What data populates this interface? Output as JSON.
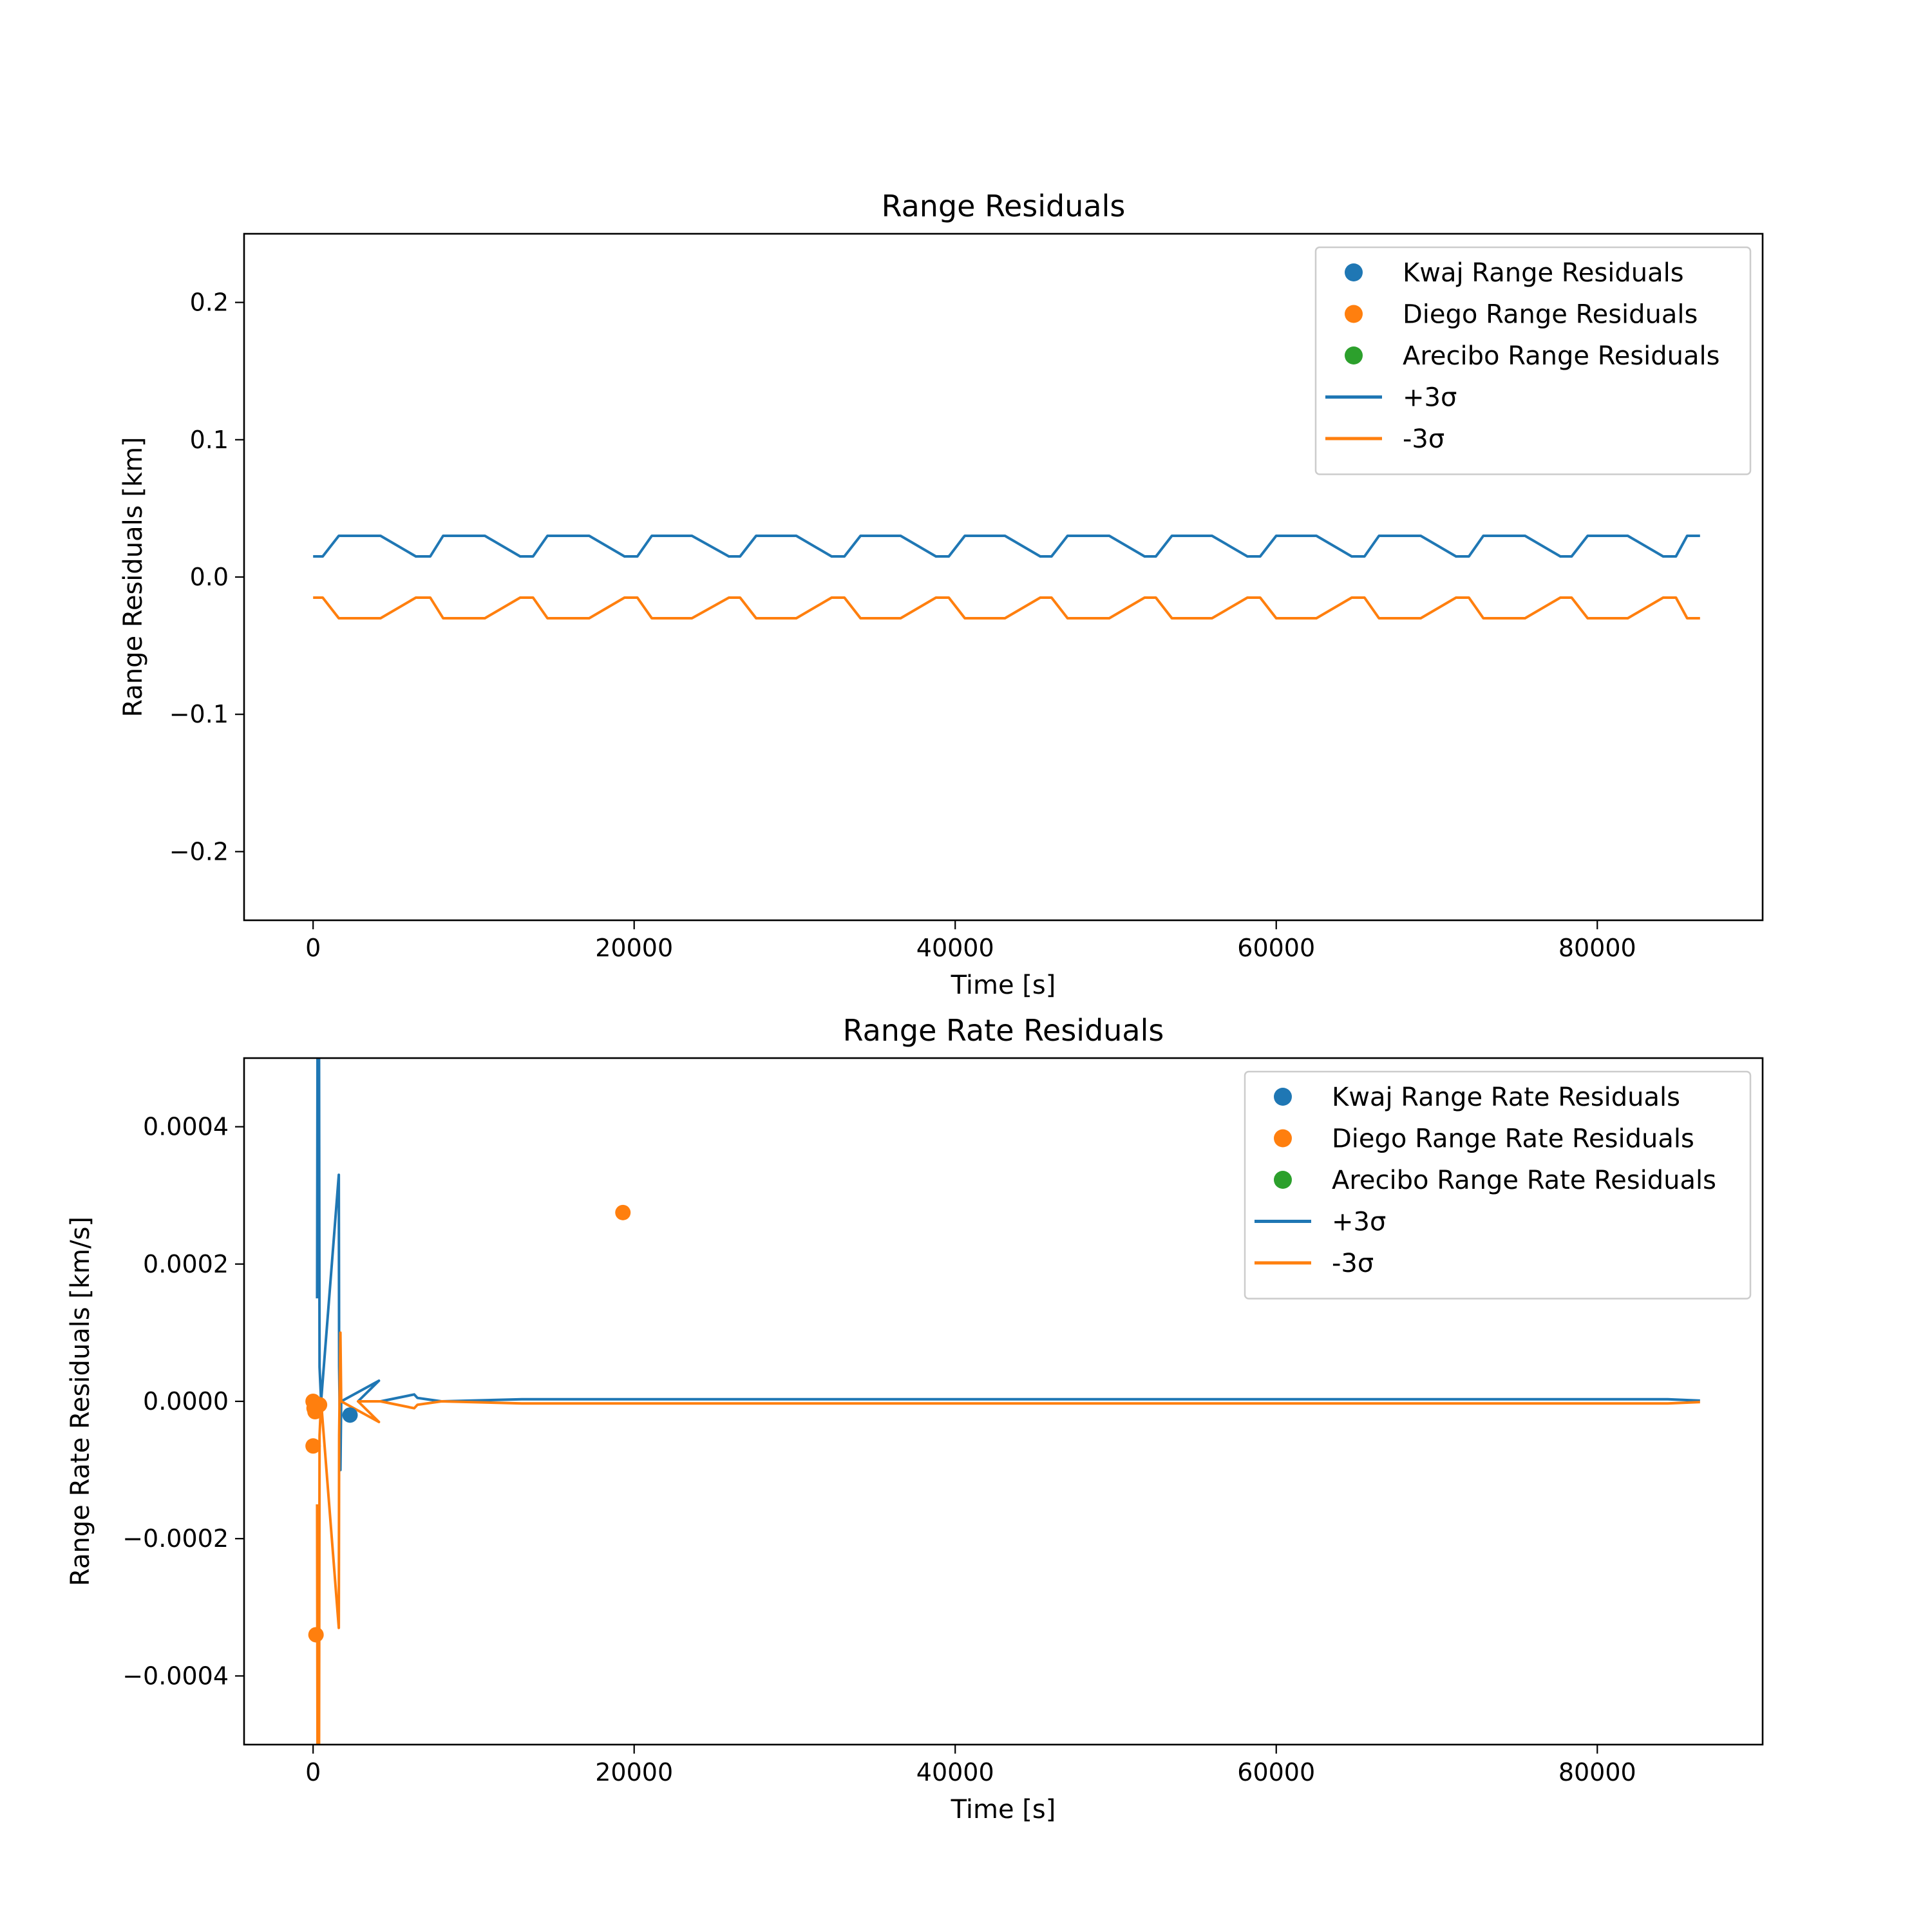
{
  "colors": {
    "blue": "#1f77b4",
    "orange": "#ff7f0e",
    "green": "#2ca02c"
  },
  "chart_data": [
    {
      "type": "line",
      "title": "Range Residuals",
      "xlabel": "Time [s]",
      "ylabel": "Range Residuals [km]",
      "xlim": [
        -4300,
        90300
      ],
      "ylim": [
        -0.25,
        0.25
      ],
      "xticks": [
        0,
        20000,
        40000,
        60000,
        80000
      ],
      "xtick_labels": [
        "0",
        "20000",
        "40000",
        "60000",
        "80000"
      ],
      "yticks": [
        0.2,
        0.1,
        0.0,
        -0.1,
        -0.2
      ],
      "ytick_labels": [
        "0.2",
        "0.1",
        "0.0",
        "−0.1",
        "−0.2"
      ],
      "legend_position": "top-right",
      "legend": [
        "Kwaj Range Residuals",
        "Diego Range Residuals",
        "Arecibo Range Residuals",
        "+3σ",
        "-3σ"
      ],
      "scatter": [
        {
          "name": "Kwaj Range Residuals",
          "color": "#1f77b4",
          "points": []
        },
        {
          "name": "Diego Range Residuals",
          "color": "#ff7f0e",
          "points": []
        },
        {
          "name": "Arecibo Range Residuals",
          "color": "#2ca02c",
          "points": []
        }
      ],
      "lines": [
        {
          "name": "+3σ",
          "color": "#1f77b4",
          "points": [
            [
              0,
              0.015
            ],
            [
              600,
              0.015
            ],
            [
              1600,
              0.03
            ],
            [
              4200,
              0.03
            ],
            [
              6400,
              0.015
            ],
            [
              7300,
              0.015
            ],
            [
              8100,
              0.03
            ],
            [
              10700,
              0.03
            ],
            [
              12900,
              0.015
            ],
            [
              13700,
              0.015
            ],
            [
              14600,
              0.03
            ],
            [
              17200,
              0.03
            ],
            [
              19400,
              0.015
            ],
            [
              20200,
              0.015
            ],
            [
              21100,
              0.03
            ],
            [
              23600,
              0.03
            ],
            [
              25900,
              0.015
            ],
            [
              26600,
              0.015
            ],
            [
              27600,
              0.03
            ],
            [
              30100,
              0.03
            ],
            [
              32300,
              0.015
            ],
            [
              33100,
              0.015
            ],
            [
              34100,
              0.03
            ],
            [
              36600,
              0.03
            ],
            [
              38800,
              0.015
            ],
            [
              39600,
              0.015
            ],
            [
              40600,
              0.03
            ],
            [
              43100,
              0.03
            ],
            [
              45300,
              0.015
            ],
            [
              46000,
              0.015
            ],
            [
              47000,
              0.03
            ],
            [
              49600,
              0.03
            ],
            [
              51800,
              0.015
            ],
            [
              52500,
              0.015
            ],
            [
              53500,
              0.03
            ],
            [
              56000,
              0.03
            ],
            [
              58200,
              0.015
            ],
            [
              59000,
              0.015
            ],
            [
              60000,
              0.03
            ],
            [
              62500,
              0.03
            ],
            [
              64700,
              0.015
            ],
            [
              65500,
              0.015
            ],
            [
              66400,
              0.03
            ],
            [
              69000,
              0.03
            ],
            [
              71200,
              0.015
            ],
            [
              72000,
              0.015
            ],
            [
              72900,
              0.03
            ],
            [
              75500,
              0.03
            ],
            [
              77700,
              0.015
            ],
            [
              78400,
              0.015
            ],
            [
              79400,
              0.03
            ],
            [
              81900,
              0.03
            ],
            [
              84100,
              0.015
            ],
            [
              84900,
              0.015
            ],
            [
              85600,
              0.03
            ],
            [
              86400,
              0.03
            ]
          ]
        },
        {
          "name": "-3σ",
          "color": "#ff7f0e",
          "points": [
            [
              0,
              -0.015
            ],
            [
              600,
              -0.015
            ],
            [
              1600,
              -0.03
            ],
            [
              4200,
              -0.03
            ],
            [
              6400,
              -0.015
            ],
            [
              7300,
              -0.015
            ],
            [
              8100,
              -0.03
            ],
            [
              10700,
              -0.03
            ],
            [
              12900,
              -0.015
            ],
            [
              13700,
              -0.015
            ],
            [
              14600,
              -0.03
            ],
            [
              17200,
              -0.03
            ],
            [
              19400,
              -0.015
            ],
            [
              20200,
              -0.015
            ],
            [
              21100,
              -0.03
            ],
            [
              23600,
              -0.03
            ],
            [
              25900,
              -0.015
            ],
            [
              26600,
              -0.015
            ],
            [
              27600,
              -0.03
            ],
            [
              30100,
              -0.03
            ],
            [
              32300,
              -0.015
            ],
            [
              33100,
              -0.015
            ],
            [
              34100,
              -0.03
            ],
            [
              36600,
              -0.03
            ],
            [
              38800,
              -0.015
            ],
            [
              39600,
              -0.015
            ],
            [
              40600,
              -0.03
            ],
            [
              43100,
              -0.03
            ],
            [
              45300,
              -0.015
            ],
            [
              46000,
              -0.015
            ],
            [
              47000,
              -0.03
            ],
            [
              49600,
              -0.03
            ],
            [
              51800,
              -0.015
            ],
            [
              52500,
              -0.015
            ],
            [
              53500,
              -0.03
            ],
            [
              56000,
              -0.03
            ],
            [
              58200,
              -0.015
            ],
            [
              59000,
              -0.015
            ],
            [
              60000,
              -0.03
            ],
            [
              62500,
              -0.03
            ],
            [
              64700,
              -0.015
            ],
            [
              65500,
              -0.015
            ],
            [
              66400,
              -0.03
            ],
            [
              69000,
              -0.03
            ],
            [
              71200,
              -0.015
            ],
            [
              72000,
              -0.015
            ],
            [
              72900,
              -0.03
            ],
            [
              75500,
              -0.03
            ],
            [
              77700,
              -0.015
            ],
            [
              78400,
              -0.015
            ],
            [
              79400,
              -0.03
            ],
            [
              81900,
              -0.03
            ],
            [
              84100,
              -0.015
            ],
            [
              84900,
              -0.015
            ],
            [
              85600,
              -0.03
            ],
            [
              86400,
              -0.03
            ]
          ]
        }
      ]
    },
    {
      "type": "line",
      "title": "Range Rate Residuals",
      "xlabel": "Time [s]",
      "ylabel": "Range Rate Residuals [km/s]",
      "xlim": [
        -4300,
        90300
      ],
      "ylim": [
        -0.0005,
        0.0005
      ],
      "xticks": [
        0,
        20000,
        40000,
        60000,
        80000
      ],
      "xtick_labels": [
        "0",
        "20000",
        "40000",
        "60000",
        "80000"
      ],
      "yticks": [
        0.0004,
        0.0002,
        0.0,
        -0.0002,
        -0.0004
      ],
      "ytick_labels": [
        "0.0004",
        "0.0002",
        "0.0000",
        "−0.0002",
        "−0.0004"
      ],
      "legend_position": "top-right",
      "legend": [
        "Kwaj Range Rate Residuals",
        "Diego Range Rate Residuals",
        "Arecibo Range Rate Residuals",
        "+3σ",
        "-3σ"
      ],
      "scatter": [
        {
          "name": "Kwaj Range Rate Residuals",
          "color": "#1f77b4",
          "points": [
            [
              2300,
              -2e-05
            ]
          ]
        },
        {
          "name": "Diego Range Rate Residuals",
          "color": "#ff7f0e",
          "points": [
            [
              0,
              0.0
            ],
            [
              0,
              -6.5e-05
            ],
            [
              60,
              -1e-05
            ],
            [
              120,
              -1.5e-05
            ],
            [
              180,
              -0.00034
            ],
            [
              400,
              -5e-06
            ],
            [
              19300,
              0.000275
            ]
          ]
        },
        {
          "name": "Arecibo Range Rate Residuals",
          "color": "#2ca02c",
          "points": []
        }
      ],
      "lines": [
        {
          "name": "+3σ",
          "color": "#1f77b4",
          "points": [
            [
              250,
              0.00015
            ],
            [
              300,
              0.0009
            ],
            [
              350,
              0.0008
            ],
            [
              400,
              5e-05
            ],
            [
              500,
              0.0
            ],
            [
              1600,
              0.00033
            ],
            [
              1620,
              5e-05
            ],
            [
              1700,
              -0.0001
            ],
            [
              1750,
              0.0
            ],
            [
              4100,
              3e-05
            ],
            [
              2800,
              0.0
            ],
            [
              4200,
              0.0
            ],
            [
              6300,
              1e-05
            ],
            [
              6500,
              5e-06
            ],
            [
              8000,
              0.0
            ],
            [
              13000,
              3e-06
            ],
            [
              19500,
              3e-06
            ],
            [
              26000,
              3e-06
            ],
            [
              32500,
              3e-06
            ],
            [
              39000,
              3e-06
            ],
            [
              45400,
              3e-06
            ],
            [
              52000,
              3e-06
            ],
            [
              58400,
              3e-06
            ],
            [
              64900,
              3e-06
            ],
            [
              71400,
              3e-06
            ],
            [
              77900,
              3e-06
            ],
            [
              84400,
              3e-06
            ],
            [
              86400,
              1e-06
            ]
          ]
        },
        {
          "name": "-3σ",
          "color": "#ff7f0e",
          "points": [
            [
              250,
              -0.00015
            ],
            [
              300,
              -0.0009
            ],
            [
              350,
              -0.0008
            ],
            [
              400,
              -5e-05
            ],
            [
              500,
              0.0
            ],
            [
              1600,
              -0.00033
            ],
            [
              1620,
              -5e-05
            ],
            [
              1700,
              0.0001
            ],
            [
              1750,
              0.0
            ],
            [
              4100,
              -3e-05
            ],
            [
              2800,
              0.0
            ],
            [
              4200,
              0.0
            ],
            [
              6300,
              -1e-05
            ],
            [
              6500,
              -5e-06
            ],
            [
              8000,
              0.0
            ],
            [
              13000,
              -3e-06
            ],
            [
              19500,
              -3e-06
            ],
            [
              26000,
              -3e-06
            ],
            [
              32500,
              -3e-06
            ],
            [
              39000,
              -3e-06
            ],
            [
              45400,
              -3e-06
            ],
            [
              52000,
              -3e-06
            ],
            [
              58400,
              -3e-06
            ],
            [
              64900,
              -3e-06
            ],
            [
              71400,
              -3e-06
            ],
            [
              77900,
              -3e-06
            ],
            [
              84400,
              -3e-06
            ],
            [
              86400,
              -1e-06
            ]
          ]
        }
      ]
    }
  ]
}
